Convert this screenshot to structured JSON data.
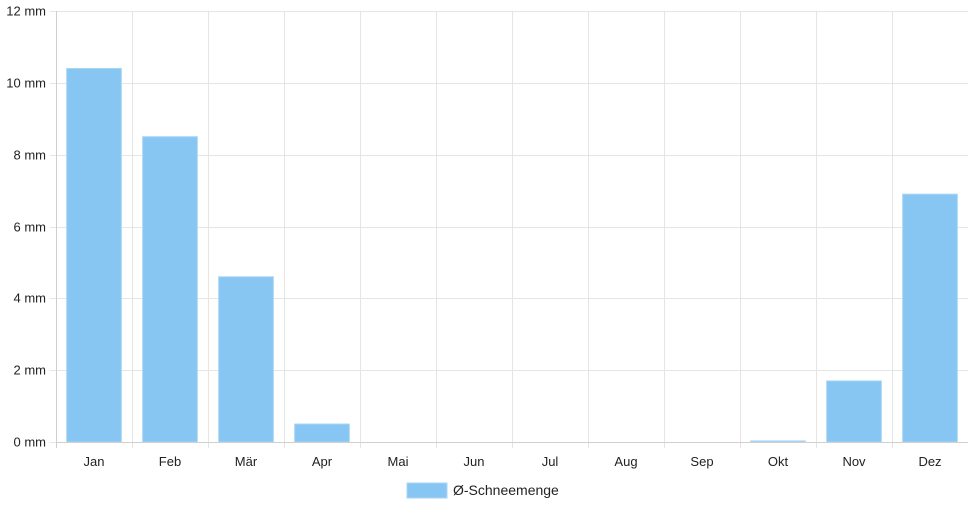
{
  "chart_data": {
    "type": "bar",
    "categories": [
      "Jan",
      "Feb",
      "Mär",
      "Apr",
      "Mai",
      "Jun",
      "Jul",
      "Aug",
      "Sep",
      "Okt",
      "Nov",
      "Dez"
    ],
    "series": [
      {
        "name": "Ø-Schneemenge",
        "values": [
          10.4,
          8.5,
          4.6,
          0.5,
          0,
          0,
          0,
          0,
          0,
          0.03,
          1.7,
          6.9
        ],
        "color": "#87c6f2",
        "border_color": "#a8d6f5"
      }
    ],
    "ylim": [
      0,
      12
    ],
    "yticks": [
      0,
      2,
      4,
      6,
      8,
      10,
      12
    ],
    "ytick_unit": " mm",
    "grid": true,
    "grid_color": "#e5e5e5",
    "legend": "bottom-center"
  }
}
